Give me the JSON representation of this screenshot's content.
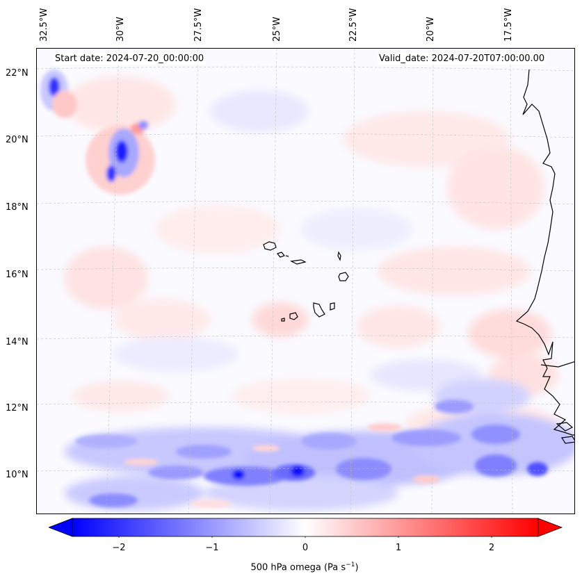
{
  "header": {
    "start_date": "Start date: 2024-07-20_00:00:00",
    "valid_date": "Valid_date: 2024-07-20T07:00:00.00"
  },
  "axes": {
    "lon_labels": [
      "32.5°W",
      "30°W",
      "27.5°W",
      "25°W",
      "22.5°W",
      "20°W",
      "17.5°W"
    ],
    "lat_labels": [
      "22°N",
      "20°N",
      "18°N",
      "16°N",
      "14°N",
      "12°N",
      "10°N"
    ]
  },
  "colorbar": {
    "ticks": [
      "−2",
      "−1",
      "0",
      "1",
      "2"
    ],
    "label_main": "500 hPa omega (Pa s",
    "label_sup": "−1",
    "label_end": ")",
    "range": [
      -2.6,
      2.6
    ],
    "colors": {
      "min": "#0000ff",
      "mid": "#ffffff",
      "max": "#ff0000"
    }
  },
  "colors": {
    "coastline": "#000000",
    "gridline": "#b8b8b8"
  }
}
